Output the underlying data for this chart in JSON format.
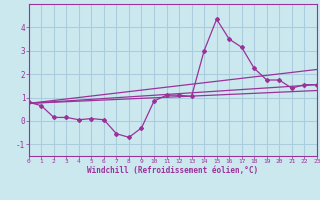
{
  "xlabel": "Windchill (Refroidissement éolien,°C)",
  "bg_color": "#cce8ef",
  "line_color": "#993399",
  "grid_color": "#aaccdd",
  "series": [
    [
      0,
      0.8
    ],
    [
      1,
      0.65
    ],
    [
      2,
      0.15
    ],
    [
      3,
      0.15
    ],
    [
      4,
      0.05
    ],
    [
      5,
      0.1
    ],
    [
      6,
      0.05
    ],
    [
      7,
      -0.55
    ],
    [
      8,
      -0.7
    ],
    [
      9,
      -0.3
    ],
    [
      10,
      0.85
    ],
    [
      11,
      1.1
    ],
    [
      12,
      1.1
    ],
    [
      13,
      1.05
    ],
    [
      14,
      3.0
    ],
    [
      15,
      4.35
    ],
    [
      16,
      3.5
    ],
    [
      17,
      3.15
    ],
    [
      18,
      2.25
    ],
    [
      19,
      1.75
    ],
    [
      20,
      1.75
    ],
    [
      21,
      1.4
    ],
    [
      22,
      1.55
    ],
    [
      23,
      1.55
    ]
  ],
  "regression_lines": [
    {
      "x0": 0,
      "y0": 0.75,
      "x1": 23,
      "y1": 2.2
    },
    {
      "x0": 0,
      "y0": 0.75,
      "x1": 23,
      "y1": 1.55
    },
    {
      "x0": 0,
      "y0": 0.75,
      "x1": 23,
      "y1": 1.3
    }
  ],
  "xlim": [
    0,
    23
  ],
  "ylim": [
    -1.5,
    5.0
  ],
  "yticks": [
    -1,
    0,
    1,
    2,
    3,
    4
  ],
  "xticks": [
    0,
    1,
    2,
    3,
    4,
    5,
    6,
    7,
    8,
    9,
    10,
    11,
    12,
    13,
    14,
    15,
    16,
    17,
    18,
    19,
    20,
    21,
    22,
    23
  ]
}
